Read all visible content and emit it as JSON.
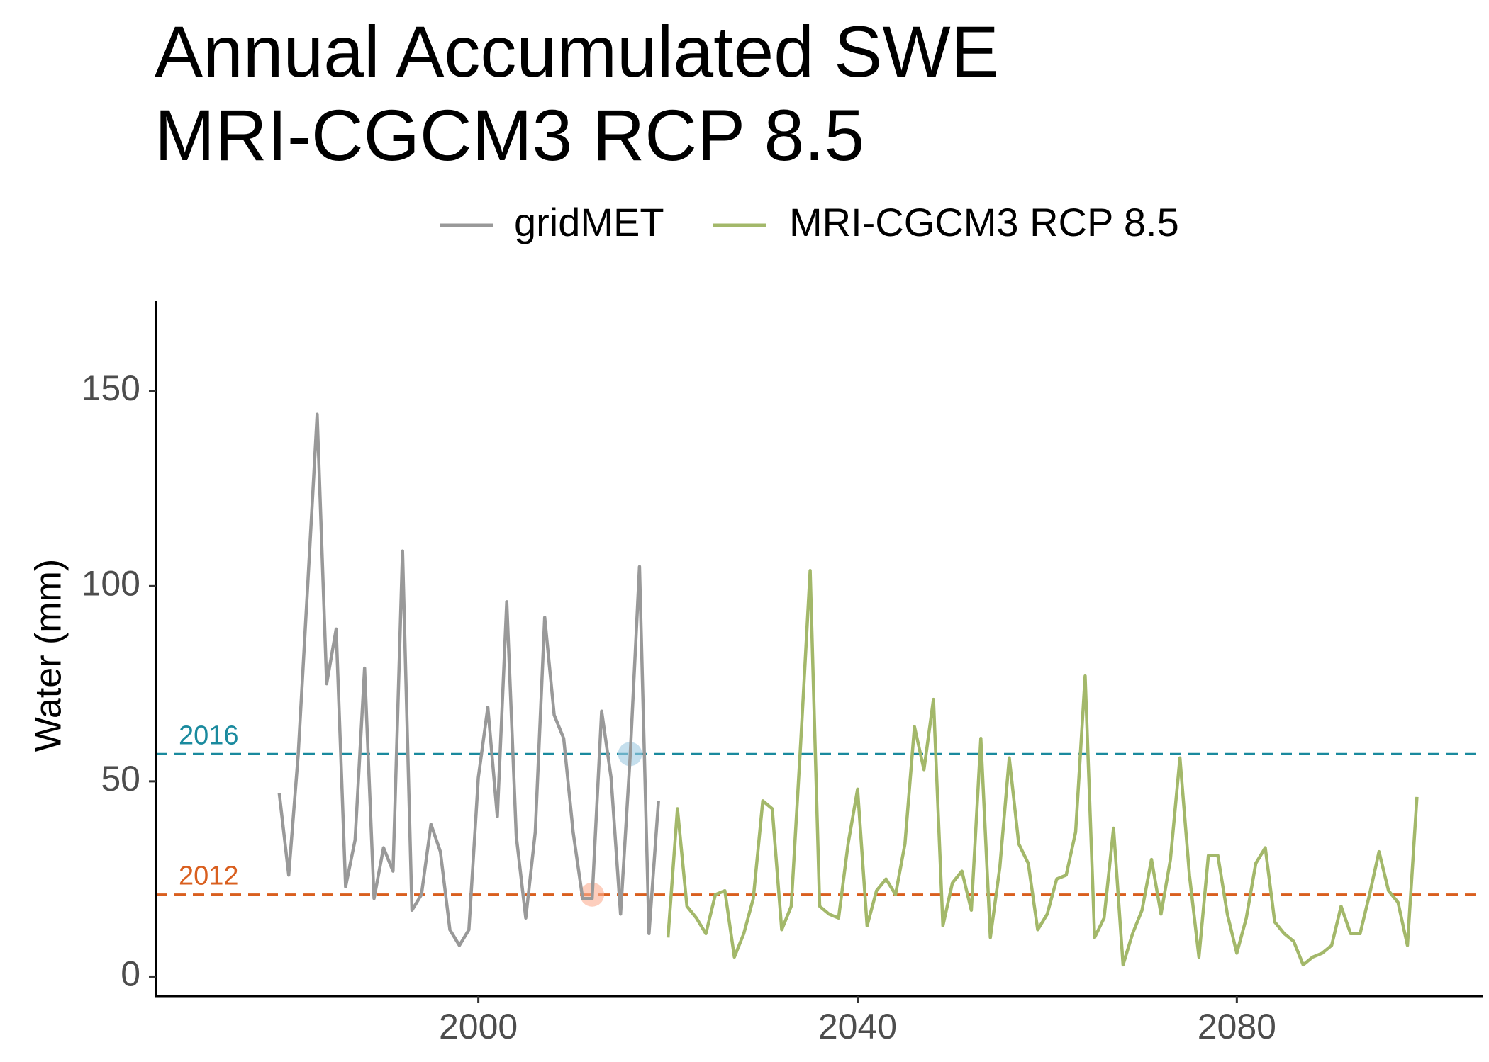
{
  "chart_data": {
    "type": "line",
    "title": [
      "Annual Accumulated SWE",
      "MRI-CGCM3 RCP 8.5"
    ],
    "ylabel": "Water (mm)",
    "xlabel": "",
    "xlim": [
      1966,
      2106
    ],
    "ylim": [
      -5,
      173
    ],
    "x_ticks": [
      2000,
      2040,
      2080
    ],
    "y_ticks": [
      0,
      50,
      100,
      150
    ],
    "grid": false,
    "legend_position": "top",
    "series": [
      {
        "name": "gridMET",
        "color": "#999999",
        "x": [
          1979,
          1980,
          1981,
          1982,
          1983,
          1984,
          1985,
          1986,
          1987,
          1988,
          1989,
          1990,
          1991,
          1992,
          1993,
          1994,
          1995,
          1996,
          1997,
          1998,
          1999,
          2000,
          2001,
          2002,
          2003,
          2004,
          2005,
          2006,
          2007,
          2008,
          2009,
          2010,
          2011,
          2012,
          2013,
          2014,
          2015,
          2016,
          2017,
          2018,
          2019
        ],
        "values": [
          47,
          26,
          57,
          100,
          144,
          75,
          89,
          23,
          35,
          79,
          20,
          33,
          27,
          109,
          17,
          21,
          39,
          32,
          12,
          8,
          12,
          51,
          69,
          41,
          96,
          36,
          15,
          37,
          92,
          67,
          61,
          37,
          20,
          20,
          68,
          51,
          16,
          56,
          105,
          11,
          45
        ]
      },
      {
        "name": "MRI-CGCM3 RCP 8.5",
        "color": "#a3b86a",
        "x": [
          2020,
          2021,
          2022,
          2023,
          2024,
          2025,
          2026,
          2027,
          2028,
          2029,
          2030,
          2031,
          2032,
          2033,
          2034,
          2035,
          2036,
          2037,
          2038,
          2039,
          2040,
          2041,
          2042,
          2043,
          2044,
          2045,
          2046,
          2047,
          2048,
          2049,
          2050,
          2051,
          2052,
          2053,
          2054,
          2055,
          2056,
          2057,
          2058,
          2059,
          2060,
          2061,
          2062,
          2063,
          2064,
          2065,
          2066,
          2067,
          2068,
          2069,
          2070,
          2071,
          2072,
          2073,
          2074,
          2075,
          2076,
          2077,
          2078,
          2079,
          2080,
          2081,
          2082,
          2083,
          2084,
          2085,
          2086,
          2087,
          2088,
          2089,
          2090,
          2091,
          2092,
          2093,
          2094,
          2095,
          2096,
          2097,
          2098,
          2099,
          2100
        ],
        "values": [
          10,
          43,
          18,
          15,
          11,
          21,
          22,
          5,
          11,
          20,
          45,
          43,
          12,
          18,
          60,
          104,
          18,
          16,
          15,
          34,
          48,
          13,
          22,
          25,
          21,
          34,
          64,
          53,
          71,
          13,
          24,
          27,
          17,
          61,
          10,
          28,
          56,
          34,
          29,
          12,
          16,
          25,
          26,
          37,
          77,
          10,
          15,
          38,
          3,
          11,
          17,
          30,
          16,
          30,
          56,
          26,
          5,
          31,
          31,
          16,
          6,
          15,
          29,
          33,
          14,
          11,
          9,
          3,
          5,
          6,
          8,
          18,
          11,
          11,
          21,
          32,
          22,
          19,
          8,
          46,
          null
        ]
      }
    ],
    "reference_lines": [
      {
        "label": "2016",
        "value": 57,
        "color": "#1a8a9e"
      },
      {
        "label": "2012",
        "value": 21,
        "color": "#d95f1f"
      }
    ],
    "highlight_points": [
      {
        "x": 2016,
        "y": 57,
        "color": "#9ecae1"
      },
      {
        "x": 2012,
        "y": 21,
        "color": "#fcae91"
      }
    ]
  }
}
